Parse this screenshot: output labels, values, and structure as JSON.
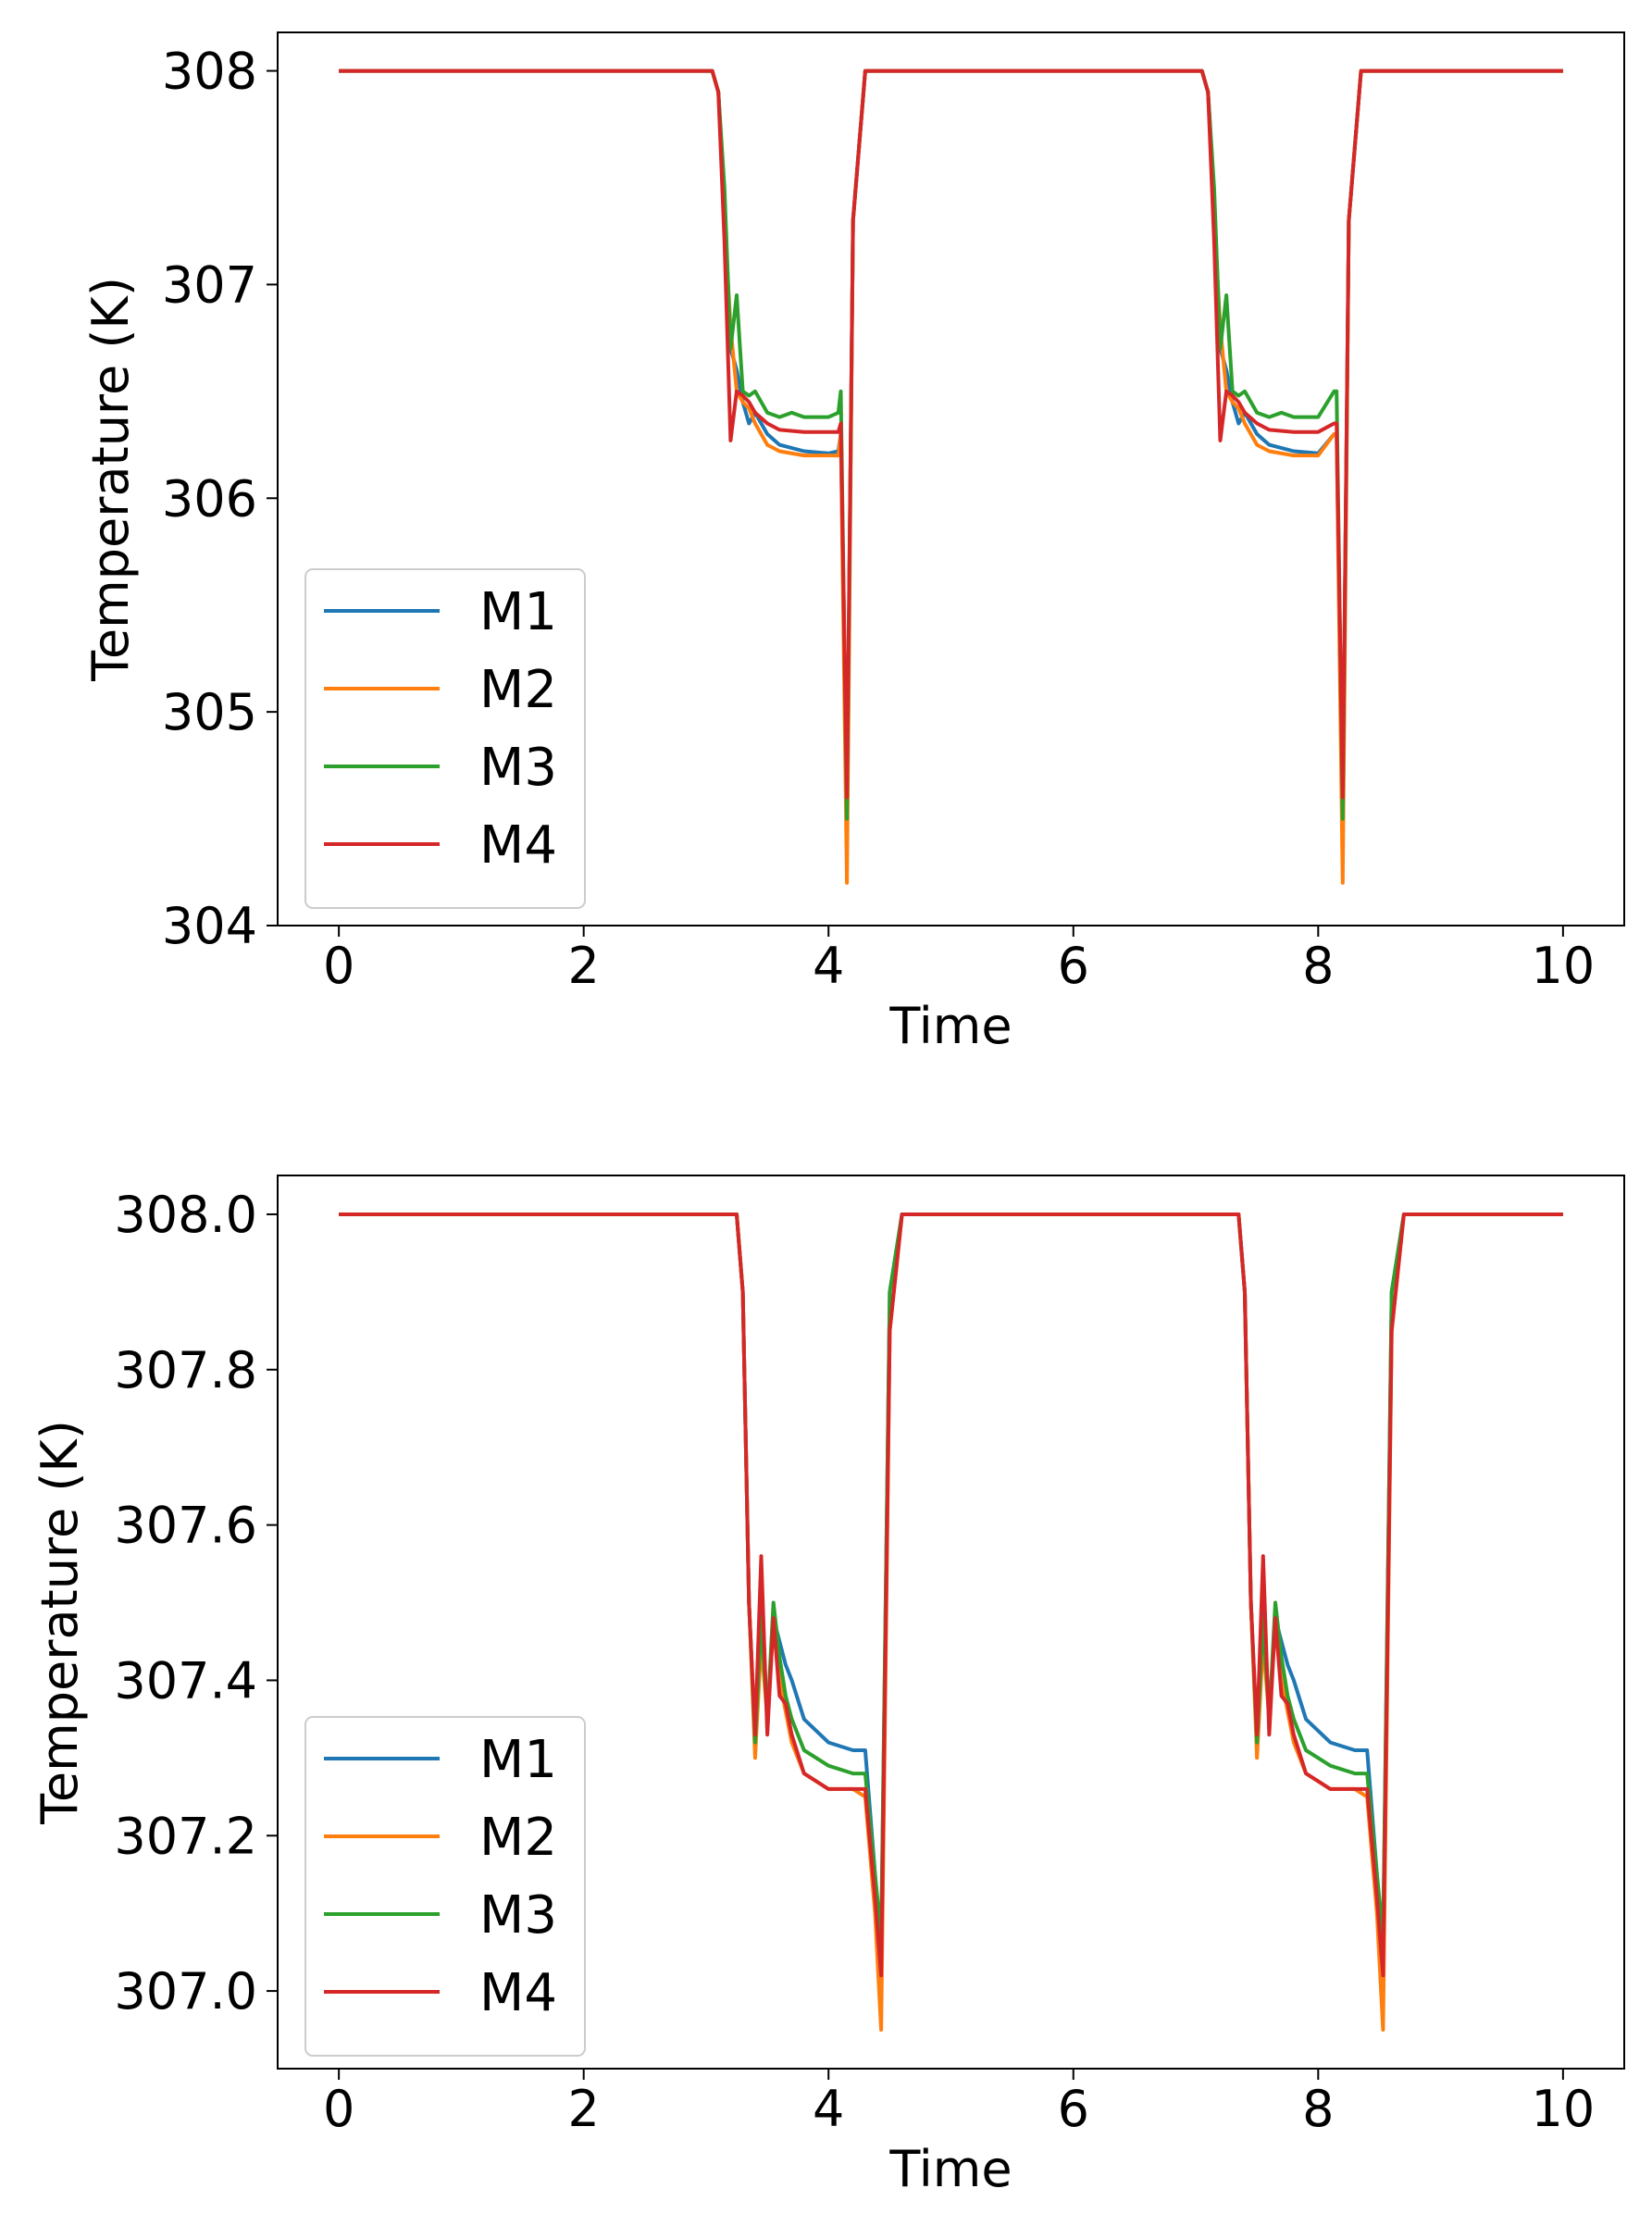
{
  "chart_data": [
    {
      "type": "line",
      "title": "",
      "xlabel": "Time",
      "ylabel": "Temperature (K)",
      "xlim": [
        -0.5,
        10.5
      ],
      "ylim": [
        304,
        308.18
      ],
      "xticks": [
        0,
        2,
        4,
        6,
        8,
        10
      ],
      "xtick_labels": [
        "0",
        "2",
        "4",
        "6",
        "8",
        "10"
      ],
      "yticks": [
        304,
        305,
        306,
        307,
        308
      ],
      "ytick_labels": [
        "304",
        "305",
        "306",
        "307",
        "308"
      ],
      "legend_position": "lower-left",
      "series": [
        {
          "name": "M1",
          "color": "#1f77b4",
          "x": [
            0,
            3.05,
            3.1,
            3.15,
            3.2,
            3.25,
            3.3,
            3.35,
            3.4,
            3.5,
            3.6,
            3.8,
            4.0,
            4.08,
            4.1,
            4.15,
            4.2,
            4.3,
            7.05,
            7.1,
            7.15,
            7.2,
            7.25,
            7.3,
            7.35,
            7.4,
            7.5,
            7.6,
            7.8,
            8.0,
            8.13,
            8.15,
            8.2,
            8.25,
            8.35,
            10
          ],
          "y": [
            308,
            308,
            307.9,
            307.4,
            306.7,
            306.6,
            306.45,
            306.35,
            306.4,
            306.3,
            306.25,
            306.22,
            306.21,
            306.22,
            306.3,
            304.5,
            307.3,
            308,
            308,
            307.9,
            307.4,
            306.7,
            306.6,
            306.45,
            306.35,
            306.4,
            306.3,
            306.25,
            306.22,
            306.21,
            306.3,
            306.3,
            304.5,
            307.3,
            308,
            308
          ]
        },
        {
          "name": "M2",
          "color": "#ff7f0e",
          "x": [
            0,
            3.05,
            3.1,
            3.15,
            3.2,
            3.25,
            3.3,
            3.35,
            3.4,
            3.5,
            3.6,
            3.8,
            4.0,
            4.08,
            4.1,
            4.15,
            4.2,
            4.3,
            7.05,
            7.1,
            7.15,
            7.2,
            7.25,
            7.3,
            7.35,
            7.4,
            7.5,
            7.6,
            7.8,
            8.0,
            8.13,
            8.15,
            8.2,
            8.25,
            8.35,
            10
          ],
          "y": [
            308,
            308,
            307.9,
            307.3,
            306.8,
            306.5,
            306.45,
            306.42,
            306.35,
            306.25,
            306.22,
            306.2,
            306.2,
            306.2,
            306.3,
            304.2,
            307.3,
            308,
            308,
            307.9,
            307.3,
            306.8,
            306.5,
            306.45,
            306.42,
            306.35,
            306.25,
            306.22,
            306.2,
            306.2,
            306.3,
            306.3,
            304.2,
            307.3,
            308,
            308
          ]
        },
        {
          "name": "M3",
          "color": "#2ca02c",
          "x": [
            0,
            3.05,
            3.1,
            3.15,
            3.2,
            3.25,
            3.3,
            3.35,
            3.4,
            3.5,
            3.6,
            3.7,
            3.8,
            4.0,
            4.08,
            4.1,
            4.15,
            4.2,
            4.3,
            7.05,
            7.1,
            7.15,
            7.2,
            7.25,
            7.3,
            7.35,
            7.4,
            7.5,
            7.6,
            7.7,
            7.8,
            8.0,
            8.13,
            8.15,
            8.2,
            8.25,
            8.35,
            10
          ],
          "y": [
            308,
            308,
            307.9,
            307.45,
            306.7,
            306.95,
            306.5,
            306.48,
            306.5,
            306.4,
            306.38,
            306.4,
            306.38,
            306.38,
            306.4,
            306.5,
            304.5,
            307.3,
            308,
            308,
            307.9,
            307.45,
            306.7,
            306.95,
            306.5,
            306.48,
            306.5,
            306.4,
            306.38,
            306.4,
            306.38,
            306.38,
            306.5,
            306.5,
            304.5,
            307.3,
            308,
            308
          ]
        },
        {
          "name": "M4",
          "color": "#d62728",
          "x": [
            0,
            3.05,
            3.1,
            3.15,
            3.2,
            3.25,
            3.3,
            3.35,
            3.4,
            3.5,
            3.6,
            3.8,
            4.0,
            4.08,
            4.1,
            4.15,
            4.2,
            4.3,
            7.05,
            7.1,
            7.15,
            7.2,
            7.25,
            7.3,
            7.35,
            7.4,
            7.5,
            7.6,
            7.8,
            8.0,
            8.13,
            8.15,
            8.2,
            8.25,
            8.35,
            10
          ],
          "y": [
            308,
            308,
            307.9,
            307.2,
            306.27,
            306.5,
            306.48,
            306.45,
            306.4,
            306.35,
            306.32,
            306.31,
            306.31,
            306.31,
            306.35,
            304.6,
            307.3,
            308,
            308,
            307.9,
            307.2,
            306.27,
            306.5,
            306.48,
            306.45,
            306.4,
            306.35,
            306.32,
            306.31,
            306.31,
            306.35,
            306.35,
            304.6,
            307.3,
            308,
            308
          ]
        }
      ]
    },
    {
      "type": "line",
      "title": "",
      "xlabel": "Time",
      "ylabel": "Temperature (K)",
      "xlim": [
        -0.5,
        10.5
      ],
      "ylim": [
        306.9,
        308.05
      ],
      "xticks": [
        0,
        2,
        4,
        6,
        8,
        10
      ],
      "xtick_labels": [
        "0",
        "2",
        "4",
        "6",
        "8",
        "10"
      ],
      "yticks": [
        307.0,
        307.2,
        307.4,
        307.6,
        307.8,
        308.0
      ],
      "ytick_labels": [
        "307.0",
        "307.2",
        "307.4",
        "307.6",
        "307.8",
        "308.0"
      ],
      "legend_position": "lower-left",
      "series": [
        {
          "name": "M1",
          "color": "#1f77b4",
          "x": [
            0,
            3.25,
            3.3,
            3.35,
            3.4,
            3.45,
            3.5,
            3.55,
            3.6,
            3.65,
            3.7,
            3.8,
            4.0,
            4.2,
            4.3,
            4.38,
            4.43,
            4.5,
            4.6,
            7.35,
            7.4,
            7.45,
            7.5,
            7.55,
            7.6,
            7.65,
            7.7,
            7.75,
            7.8,
            7.9,
            8.1,
            8.3,
            8.4,
            8.48,
            8.53,
            8.6,
            8.7,
            10
          ],
          "y": [
            308,
            308,
            307.9,
            307.5,
            307.32,
            307.5,
            307.35,
            307.48,
            307.45,
            307.42,
            307.4,
            307.35,
            307.32,
            307.31,
            307.31,
            307.15,
            307.05,
            307.9,
            308,
            308,
            307.9,
            307.5,
            307.32,
            307.5,
            307.35,
            307.48,
            307.45,
            307.42,
            307.4,
            307.35,
            307.32,
            307.31,
            307.31,
            307.15,
            307.05,
            307.9,
            308,
            308
          ]
        },
        {
          "name": "M2",
          "color": "#ff7f0e",
          "x": [
            0,
            3.25,
            3.3,
            3.35,
            3.4,
            3.45,
            3.5,
            3.55,
            3.6,
            3.65,
            3.7,
            3.8,
            4.0,
            4.2,
            4.3,
            4.38,
            4.43,
            4.5,
            4.6,
            7.35,
            7.4,
            7.45,
            7.5,
            7.55,
            7.6,
            7.65,
            7.7,
            7.75,
            7.8,
            7.9,
            8.1,
            8.3,
            8.4,
            8.48,
            8.53,
            8.6,
            8.7,
            10
          ],
          "y": [
            308,
            308,
            307.9,
            307.5,
            307.3,
            307.45,
            307.35,
            307.47,
            307.4,
            307.36,
            307.32,
            307.28,
            307.26,
            307.26,
            307.25,
            307.1,
            306.95,
            307.85,
            308,
            308,
            307.9,
            307.5,
            307.3,
            307.45,
            307.35,
            307.47,
            307.4,
            307.36,
            307.32,
            307.28,
            307.26,
            307.26,
            307.25,
            307.1,
            306.95,
            307.85,
            308,
            308
          ]
        },
        {
          "name": "M3",
          "color": "#2ca02c",
          "x": [
            0,
            3.25,
            3.3,
            3.35,
            3.4,
            3.45,
            3.5,
            3.55,
            3.6,
            3.65,
            3.7,
            3.8,
            4.0,
            4.2,
            4.3,
            4.38,
            4.43,
            4.5,
            4.6,
            7.35,
            7.4,
            7.45,
            7.5,
            7.55,
            7.6,
            7.65,
            7.7,
            7.75,
            7.8,
            7.9,
            8.1,
            8.3,
            8.4,
            8.48,
            8.53,
            8.6,
            8.7,
            10
          ],
          "y": [
            308,
            308,
            307.9,
            307.5,
            307.32,
            307.48,
            307.35,
            307.5,
            307.43,
            307.38,
            307.35,
            307.31,
            307.29,
            307.28,
            307.28,
            307.15,
            307.07,
            307.9,
            308,
            308,
            307.9,
            307.5,
            307.32,
            307.48,
            307.35,
            307.5,
            307.43,
            307.38,
            307.35,
            307.31,
            307.29,
            307.28,
            307.28,
            307.15,
            307.07,
            307.9,
            308,
            308
          ]
        },
        {
          "name": "M4",
          "color": "#d62728",
          "x": [
            0,
            3.25,
            3.3,
            3.35,
            3.4,
            3.45,
            3.5,
            3.55,
            3.6,
            3.65,
            3.7,
            3.8,
            4.0,
            4.2,
            4.3,
            4.38,
            4.43,
            4.5,
            4.6,
            7.35,
            7.4,
            7.45,
            7.5,
            7.55,
            7.6,
            7.65,
            7.7,
            7.75,
            7.8,
            7.9,
            8.1,
            8.3,
            8.4,
            8.48,
            8.53,
            8.6,
            8.7,
            10
          ],
          "y": [
            308,
            308,
            307.9,
            307.5,
            307.33,
            307.56,
            307.33,
            307.48,
            307.38,
            307.37,
            307.33,
            307.28,
            307.26,
            307.26,
            307.26,
            307.12,
            307.02,
            307.85,
            308,
            308,
            307.9,
            307.5,
            307.33,
            307.56,
            307.33,
            307.48,
            307.38,
            307.37,
            307.33,
            307.28,
            307.26,
            307.26,
            307.26,
            307.12,
            307.02,
            307.85,
            308,
            308
          ]
        }
      ]
    }
  ]
}
